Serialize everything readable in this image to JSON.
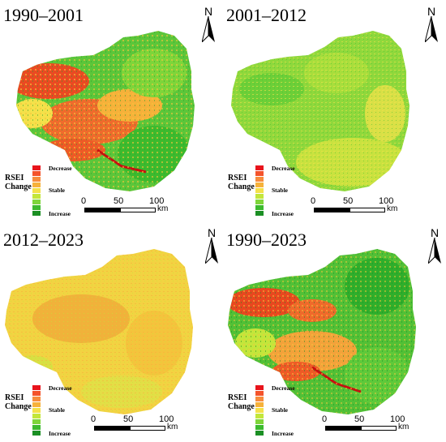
{
  "panels": [
    {
      "title": "1990–2001",
      "north": "N",
      "legend": true
    },
    {
      "title": "2001–2012",
      "north": "N",
      "legend": true
    },
    {
      "title": "2012–2023",
      "north": "N",
      "legend": true
    },
    {
      "title": "1990–2023",
      "north": "N",
      "legend": true
    }
  ],
  "legend": {
    "title_line1": "RSEI",
    "title_line2": "Change",
    "decrease": "Decrease",
    "stable": "Stable",
    "increase": "Increase",
    "colors": [
      "#e8141c",
      "#f4532b",
      "#f78c3c",
      "#f6b13a",
      "#f4e14a",
      "#c3e63b",
      "#7ed53a",
      "#3cba2e",
      "#1b8f24"
    ]
  },
  "scale": {
    "ticks": [
      "0",
      "50",
      "100"
    ],
    "unit": "km"
  },
  "north_icon": "north-arrow-icon"
}
